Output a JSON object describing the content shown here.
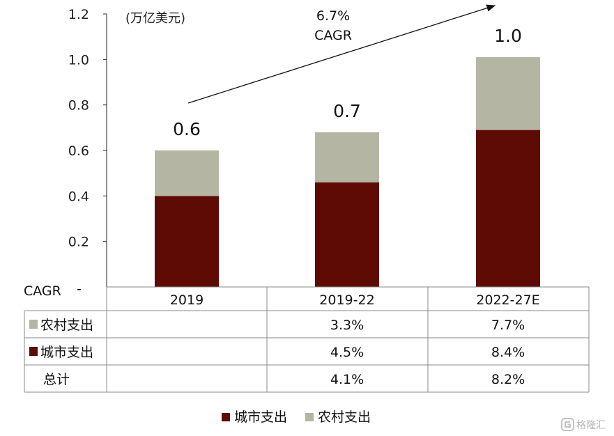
{
  "chart_data": {
    "type": "bar",
    "stacked": true,
    "categories": [
      "2019",
      "2019-22",
      "2022-27E"
    ],
    "series": [
      {
        "name": "城市支出",
        "values": [
          0.4,
          0.46,
          0.69
        ],
        "color": "#5e0b06"
      },
      {
        "name": "农村支出",
        "values": [
          0.2,
          0.22,
          0.32
        ],
        "color": "#b5b5a3"
      }
    ],
    "totals_labels": [
      "0.6",
      "0.7",
      "1.0"
    ],
    "unit_label": "(万亿美元)",
    "y_ticks": [
      "0.2",
      "0.4",
      "0.6",
      "0.8",
      "1.0",
      "1.2"
    ],
    "ylim": [
      0,
      1.2
    ],
    "grid": false,
    "legend_position": "bottom",
    "annotation": {
      "line1": "6.7%",
      "line2": "CAGR"
    },
    "cagr_table": {
      "header": "CAGR",
      "columns": [
        "2019",
        "2019-22",
        "2022-27E"
      ],
      "rows": [
        {
          "label": "农村支出",
          "swatch": "#b5b5a3",
          "values": [
            "",
            "3.3%",
            "7.7%"
          ]
        },
        {
          "label": "城市支出",
          "swatch": "#5e0b06",
          "values": [
            "",
            "4.5%",
            "8.4%"
          ]
        },
        {
          "label": "总计",
          "swatch": "",
          "values": [
            "",
            "4.1%",
            "8.2%"
          ]
        }
      ]
    }
  },
  "watermark": {
    "text": "格隆汇"
  }
}
